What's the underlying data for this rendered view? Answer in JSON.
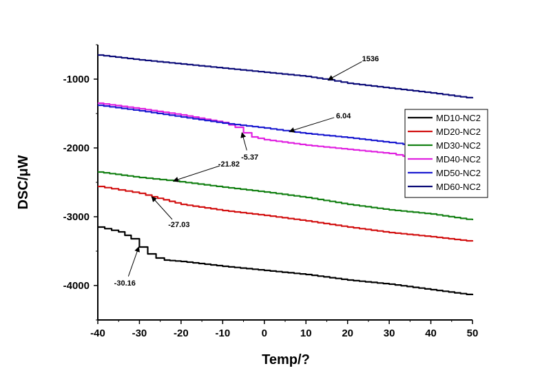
{
  "chart_data": {
    "type": "line",
    "title": "",
    "xlabel": "Temp/?",
    "ylabel": "DSC/μW",
    "xlim": [
      -40,
      50
    ],
    "ylim": [
      -4500,
      -500
    ],
    "xticks": [
      -40,
      -30,
      -20,
      -10,
      0,
      10,
      20,
      30,
      40,
      50
    ],
    "yticks": [
      -4000,
      -3000,
      -2000,
      -1000
    ],
    "grid": false,
    "legend_position": "right",
    "series": [
      {
        "name": "MD10-NC2",
        "color": "#000000",
        "x": [
          -40,
          -35,
          -32,
          -30,
          -28,
          -26,
          -24,
          -20,
          -10,
          0,
          10,
          20,
          30,
          40,
          50
        ],
        "y": [
          -3150,
          -3220,
          -3320,
          -3440,
          -3540,
          -3600,
          -3630,
          -3650,
          -3720,
          -3780,
          -3840,
          -3920,
          -3980,
          -4060,
          -4140
        ]
      },
      {
        "name": "MD20-NC2",
        "color": "#d21010",
        "x": [
          -40,
          -35,
          -30,
          -27,
          -20,
          -10,
          0,
          10,
          20,
          30,
          40,
          50
        ],
        "y": [
          -2560,
          -2610,
          -2660,
          -2710,
          -2820,
          -2910,
          -2980,
          -3060,
          -3150,
          -3230,
          -3290,
          -3360
        ]
      },
      {
        "name": "MD30-NC2",
        "color": "#138013",
        "x": [
          -40,
          -30,
          -21.82,
          -10,
          0,
          10,
          20,
          30,
          40,
          50
        ],
        "y": [
          -2350,
          -2430,
          -2480,
          -2570,
          -2640,
          -2720,
          -2820,
          -2900,
          -2960,
          -3050
        ]
      },
      {
        "name": "MD40-NC2",
        "color": "#e020e0",
        "x": [
          -40,
          -30,
          -20,
          -10,
          -7,
          -5,
          -3,
          0,
          10,
          20,
          30,
          35
        ],
        "y": [
          -1350,
          -1430,
          -1520,
          -1630,
          -1700,
          -1780,
          -1840,
          -1880,
          -1960,
          -2020,
          -2080,
          -2140
        ]
      },
      {
        "name": "MD50-NC2",
        "color": "#1a1ad0",
        "x": [
          -40,
          -30,
          -20,
          -10,
          0,
          6.04,
          10,
          20,
          30,
          35
        ],
        "y": [
          -1380,
          -1460,
          -1550,
          -1640,
          -1710,
          -1760,
          -1790,
          -1850,
          -1920,
          -1960
        ]
      },
      {
        "name": "MD60-NC2",
        "color": "#0b0b78",
        "x": [
          -40,
          -30,
          -20,
          -10,
          0,
          10,
          15.36,
          20,
          30,
          40,
          50
        ],
        "y": [
          -650,
          -720,
          -780,
          -840,
          -900,
          -960,
          -1010,
          -1060,
          -1130,
          -1200,
          -1280
        ]
      }
    ],
    "annotations": [
      {
        "text": "1536",
        "x": 15.36,
        "y": -1010,
        "tx": 25.5,
        "ty": -700
      },
      {
        "text": "6.04",
        "x": 6.04,
        "y": -1760,
        "tx": 19,
        "ty": -1530
      },
      {
        "text": "-5.37",
        "x": -5.37,
        "y": -1780,
        "tx": -3.5,
        "ty": -2130
      },
      {
        "text": "-21.82",
        "x": -21.82,
        "y": -2480,
        "tx": -8.5,
        "ty": -2230
      },
      {
        "text": "-27.03",
        "x": -27.03,
        "y": -2710,
        "tx": -20.5,
        "ty": -3110
      },
      {
        "text": "-30.16",
        "x": -30.16,
        "y": -3440,
        "tx": -33.5,
        "ty": -3960
      }
    ]
  }
}
